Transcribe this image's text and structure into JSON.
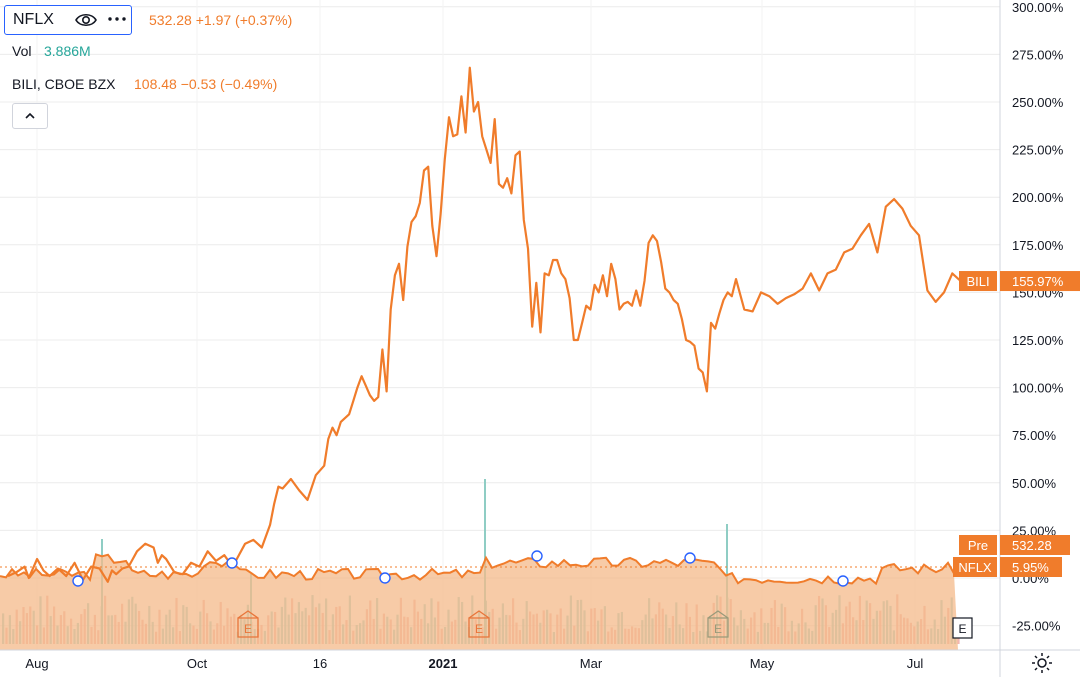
{
  "legend": {
    "symbol": "NFLX",
    "price": "532.28",
    "change": "+1.97",
    "change_pct": "(+0.37%)",
    "vol_label": "Vol",
    "vol_value": "3.886M",
    "compare_symbol": "BILI, CBOE BZX",
    "compare_price": "108.48",
    "compare_change": "−0.53",
    "compare_change_pct": "(−0.49%)"
  },
  "icons": [
    "eye-icon",
    "more-dots-icon",
    "chevron-up-icon",
    "gear-icon"
  ],
  "colors": {
    "line": "#f07c2b",
    "area_fill": "#f4b98a",
    "volume_up": "#8fcdc4",
    "volume_down": "#f0a9a3",
    "grid": "#ececec",
    "text": "#131722"
  },
  "chart_data": {
    "type": "line",
    "y_axis": {
      "ticks": [
        "300.00%",
        "275.00%",
        "250.00%",
        "225.00%",
        "200.00%",
        "175.00%",
        "150.00%",
        "125.00%",
        "100.00%",
        "75.00%",
        "50.00%",
        "25.00%",
        "0.00%",
        "-25.00%"
      ],
      "ylim": [
        -32,
        302
      ],
      "unit": "%"
    },
    "x_axis": {
      "labels": [
        "Aug",
        "Oct",
        "16",
        "2021",
        "Mar",
        "May",
        "Jul"
      ]
    },
    "series": [
      {
        "name": "BILI",
        "last_label": "155.97%",
        "x": [
          -10,
          -5,
          0,
          4,
          8,
          10,
          14,
          17,
          20,
          24,
          28,
          32,
          36,
          40,
          44,
          48,
          50,
          52,
          55,
          58,
          60,
          62,
          66,
          70,
          72,
          74,
          76,
          80,
          84,
          88,
          92,
          96,
          100,
          104,
          108,
          110,
          114,
          118,
          122,
          126,
          128,
          130,
          132,
          136,
          140,
          144,
          148,
          152,
          154,
          156,
          158,
          160,
          162,
          164,
          166,
          168,
          170,
          172,
          174,
          176,
          178,
          180,
          182,
          184,
          186,
          188,
          190,
          192,
          194,
          196,
          198,
          200,
          202,
          204,
          206,
          208,
          210,
          212,
          214,
          216,
          218,
          220,
          222,
          224,
          226,
          228,
          230,
          232,
          234,
          236,
          238,
          240,
          242,
          244,
          246,
          248,
          250,
          252,
          254,
          256,
          258,
          260,
          262,
          264,
          266,
          268,
          270,
          272,
          274,
          276,
          278,
          280,
          282,
          284,
          286,
          288,
          290,
          292,
          294,
          296,
          298,
          300,
          302,
          304,
          306,
          308,
          310,
          312,
          314,
          316,
          318,
          320,
          322,
          324,
          326,
          328,
          330,
          332,
          334,
          336,
          338,
          340,
          342,
          344,
          346,
          348,
          350
        ],
        "y": [
          5,
          2,
          1,
          3,
          6,
          0,
          10,
          4,
          1,
          5,
          1,
          8,
          -1,
          6,
          5,
          -2,
          4,
          2,
          5,
          6,
          10,
          14,
          18,
          16,
          8,
          12,
          10,
          3,
          2,
          8,
          6,
          14,
          9,
          12,
          6,
          10,
          18,
          20,
          16,
          28,
          39,
          48,
          47,
          52,
          46,
          41,
          54,
          59,
          73,
          79,
          75,
          82,
          84,
          86,
          93,
          100,
          106,
          101,
          96,
          93,
          95,
          120,
          98,
          141,
          159,
          165,
          146,
          174,
          187,
          190,
          197,
          214,
          216,
          185,
          169,
          191,
          220,
          242,
          232,
          233,
          253,
          234,
          268,
          245,
          250,
          232,
          225,
          218,
          241,
          207,
          205,
          210,
          202,
          222,
          224,
          188,
          173,
          132,
          155,
          129,
          160,
          159,
          167,
          167,
          160,
          157,
          147,
          125,
          125,
          134,
          143,
          141,
          154,
          150,
          159,
          148,
          165,
          157,
          141,
          144,
          145,
          143,
          151,
          143,
          156,
          176,
          180,
          177,
          166,
          152,
          150,
          146,
          144,
          136,
          125,
          124,
          122,
          110,
          108,
          98,
          134,
          131,
          139,
          146,
          150,
          148,
          157
        ],
        "tail_x": [
          350,
          354,
          358,
          362,
          366,
          370,
          374,
          378,
          382,
          386,
          390,
          394,
          398,
          402,
          406,
          410,
          414,
          418,
          422,
          426,
          430,
          434,
          438,
          442,
          446,
          450,
          454,
          458
        ],
        "tail_y": [
          157,
          141,
          140,
          150,
          148,
          144,
          147,
          149,
          152,
          160,
          151,
          160,
          162,
          171,
          173,
          180,
          186,
          171,
          195,
          199,
          194,
          185,
          180,
          151,
          145,
          150,
          160,
          156
        ]
      },
      {
        "name": "NFLX",
        "last_label": "5.95%",
        "pre_label": "Pre",
        "pre_value": "532.28"
      }
    ]
  }
}
